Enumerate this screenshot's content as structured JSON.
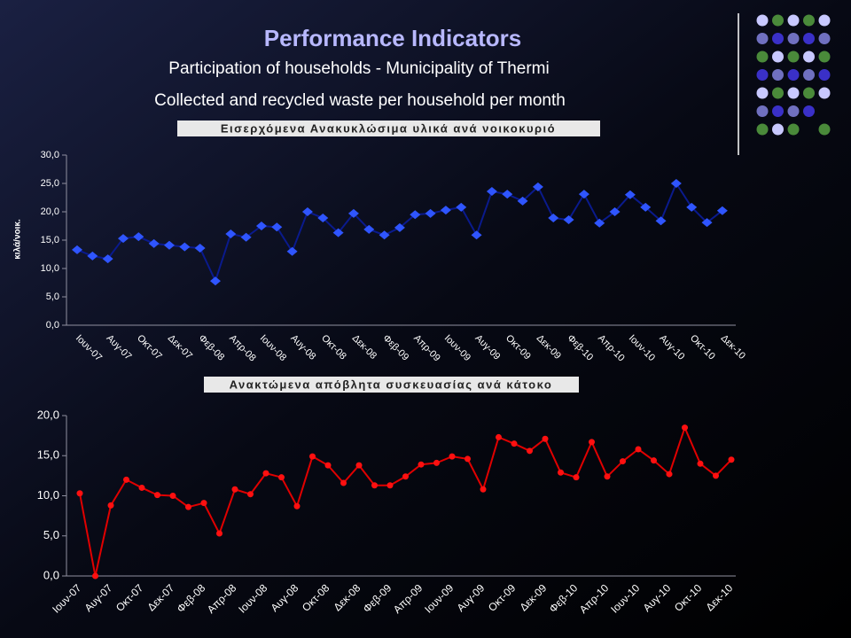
{
  "header": {
    "title": "Performance Indicators",
    "subtitle": "Participation of households - Municipality of Thermi",
    "heading": "Collected and recycled waste per household per month"
  },
  "chart_data": [
    {
      "type": "line",
      "title": "Εισερχόμενα Ανακυκλώσιμα υλικά ανά νοικοκυριό",
      "y_label": "κιλά/νοικ.",
      "categories": [
        "Ιουν-07",
        null,
        "Αυγ-07",
        null,
        "Οκτ-07",
        null,
        "Δεκ-07",
        null,
        "Φεβ-08",
        null,
        "Απρ-08",
        null,
        "Ιουν-08",
        null,
        "Αυγ-08",
        null,
        "Οκτ-08",
        null,
        "Δεκ-08",
        null,
        "Φεβ-09",
        null,
        "Απρ-09",
        null,
        "Ιουν-09",
        null,
        "Αυγ-09",
        null,
        "Οκτ-09",
        null,
        "Δεκ-09",
        null,
        "Φεβ-10",
        null,
        "Απρ-10",
        null,
        "Ιουν-10",
        null,
        "Αυγ-10",
        null,
        "Οκτ-10",
        null,
        "Δεκ-10"
      ],
      "values": [
        13.3,
        12.2,
        11.7,
        15.3,
        15.6,
        14.4,
        14.1,
        13.8,
        13.6,
        7.8,
        16.1,
        15.5,
        17.5,
        17.3,
        13.0,
        20.0,
        18.9,
        16.3,
        19.7,
        16.9,
        15.9,
        17.2,
        19.5,
        19.7,
        20.3,
        20.8,
        15.9,
        23.6,
        23.1,
        21.9,
        24.4,
        18.9,
        18.6,
        23.1,
        18.0,
        20.0,
        23.0,
        20.8,
        18.4,
        25.0,
        20.8,
        18.1,
        20.2
      ],
      "color": "#0a1a8c",
      "marker_color": "#2f55ff",
      "marker": "diamond",
      "ylim": [
        0,
        30
      ],
      "yticks": [
        {
          "value": 0,
          "label": "0,0"
        },
        {
          "value": 5,
          "label": "5,0"
        },
        {
          "value": 10,
          "label": "10,0"
        },
        {
          "value": 15,
          "label": "15,0"
        },
        {
          "value": 20,
          "label": "20,0"
        },
        {
          "value": 25,
          "label": "25,0"
        },
        {
          "value": 30,
          "label": "30,0"
        }
      ],
      "grid": false
    },
    {
      "type": "line",
      "title": "Ανακτώμενα απόβλητα συσκευασίας ανά κάτοκο",
      "categories": [
        "Ιουν-07",
        null,
        "Αυγ-07",
        null,
        "Οκτ-07",
        null,
        "Δεκ-07",
        null,
        "Φεβ-08",
        null,
        "Απρ-08",
        null,
        "Ιουν-08",
        null,
        "Αυγ-08",
        null,
        "Οκτ-08",
        null,
        "Δεκ-08",
        null,
        "Φεβ-09",
        null,
        "Απρ-09",
        null,
        "Ιουν-09",
        null,
        "Αυγ-09",
        null,
        "Οκτ-09",
        null,
        "Δεκ-09",
        null,
        "Φεβ-10",
        null,
        "Απρ-10",
        null,
        "Ιουν-10",
        null,
        "Αυγ-10",
        null,
        "Οκτ-10",
        null,
        "Δεκ-10"
      ],
      "values": [
        10.3,
        0,
        8.8,
        12.0,
        11.0,
        10.1,
        10.0,
        8.6,
        9.1,
        5.3,
        10.8,
        10.2,
        12.8,
        12.3,
        8.7,
        14.9,
        13.8,
        11.6,
        13.8,
        11.3,
        11.3,
        12.4,
        13.9,
        14.1,
        14.9,
        14.6,
        10.8,
        17.3,
        16.5,
        15.6,
        17.1,
        12.9,
        12.3,
        16.7,
        12.4,
        14.3,
        15.8,
        14.4,
        12.7,
        18.5,
        14.0,
        12.5,
        14.5
      ],
      "color": "#e00000",
      "marker_color": "#ff1010",
      "marker": "circle",
      "ylim": [
        0,
        20
      ],
      "yticks": [
        {
          "value": 0,
          "label": "0,0"
        },
        {
          "value": 5,
          "label": "5,0"
        },
        {
          "value": 10,
          "label": "10,0"
        },
        {
          "value": 15,
          "label": "15,0"
        },
        {
          "value": 20,
          "label": "20,0"
        }
      ],
      "grid": false
    }
  ]
}
